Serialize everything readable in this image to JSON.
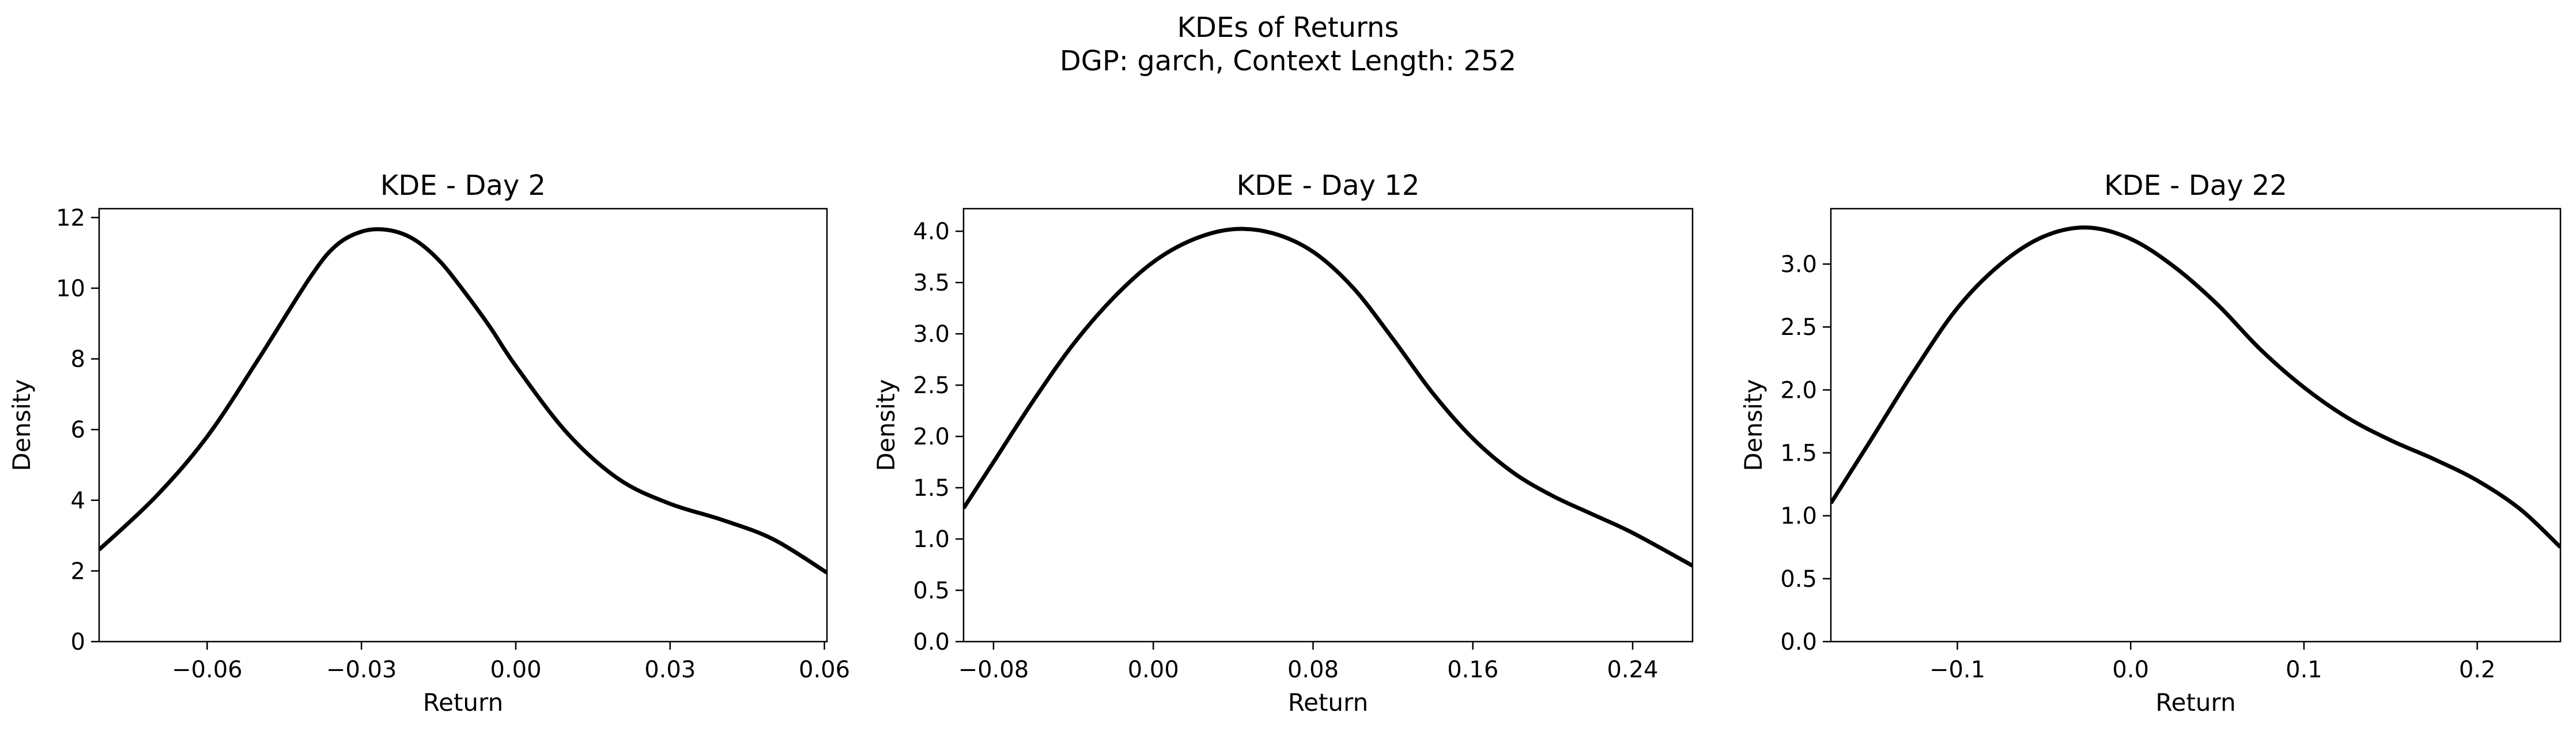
{
  "figure": {
    "suptitle_line1": "KDEs of Returns",
    "suptitle_line2": "DGP: garch, Context Length: 252"
  },
  "chart_data": [
    {
      "type": "line",
      "title": "KDE - Day 2",
      "xlabel": "Return",
      "ylabel": "Density",
      "xlim": [
        -0.081,
        0.0605
      ],
      "ylim": [
        0,
        12.25
      ],
      "xticks": [
        -0.06,
        -0.03,
        0.0,
        0.03,
        0.06
      ],
      "xtick_labels": [
        "−0.06",
        "−0.03",
        "0.00",
        "0.03",
        "0.06"
      ],
      "yticks": [
        0,
        2,
        4,
        6,
        8,
        10,
        12
      ],
      "ytick_labels": [
        "0",
        "2",
        "4",
        "6",
        "8",
        "10",
        "12"
      ],
      "line_color": "#000000",
      "grid": false,
      "series": [
        {
          "x": [
            -0.081,
            -0.07,
            -0.06,
            -0.05,
            -0.04,
            -0.035,
            -0.03,
            -0.025,
            -0.02,
            -0.015,
            -0.01,
            -0.005,
            0.0,
            0.01,
            0.02,
            0.03,
            0.04,
            0.05,
            0.0605
          ],
          "y": [
            2.6,
            4.1,
            5.8,
            8.0,
            10.3,
            11.2,
            11.6,
            11.65,
            11.4,
            10.8,
            9.9,
            8.9,
            7.8,
            5.9,
            4.6,
            3.9,
            3.45,
            2.9,
            1.95
          ]
        }
      ]
    },
    {
      "type": "line",
      "title": "KDE - Day 12",
      "xlabel": "Return",
      "ylabel": "Density",
      "xlim": [
        -0.095,
        0.27
      ],
      "ylim": [
        0,
        4.22
      ],
      "xticks": [
        -0.08,
        0.0,
        0.08,
        0.16,
        0.24
      ],
      "xtick_labels": [
        "−0.08",
        "0.00",
        "0.08",
        "0.16",
        "0.24"
      ],
      "yticks": [
        0.0,
        0.5,
        1.0,
        1.5,
        2.0,
        2.5,
        3.0,
        3.5,
        4.0
      ],
      "ytick_labels": [
        "0.0",
        "0.5",
        "1.0",
        "1.5",
        "2.0",
        "2.5",
        "3.0",
        "3.5",
        "4.0"
      ],
      "line_color": "#000000",
      "grid": false,
      "series": [
        {
          "x": [
            -0.095,
            -0.08,
            -0.06,
            -0.04,
            -0.02,
            0.0,
            0.02,
            0.04,
            0.06,
            0.08,
            0.1,
            0.12,
            0.14,
            0.16,
            0.18,
            0.2,
            0.22,
            0.24,
            0.27
          ],
          "y": [
            1.3,
            1.75,
            2.35,
            2.9,
            3.35,
            3.7,
            3.92,
            4.02,
            3.98,
            3.8,
            3.45,
            2.95,
            2.42,
            1.98,
            1.65,
            1.42,
            1.24,
            1.06,
            0.74
          ]
        }
      ]
    },
    {
      "type": "line",
      "title": "KDE - Day 22",
      "xlabel": "Return",
      "ylabel": "Density",
      "xlim": [
        -0.173,
        0.248
      ],
      "ylim": [
        0,
        3.44
      ],
      "xticks": [
        -0.1,
        0.0,
        0.1,
        0.2
      ],
      "xtick_labels": [
        "−0.1",
        "0.0",
        "0.1",
        "0.2"
      ],
      "yticks": [
        0.0,
        0.5,
        1.0,
        1.5,
        2.0,
        2.5,
        3.0
      ],
      "ytick_labels": [
        "0.0",
        "0.5",
        "1.0",
        "1.5",
        "2.0",
        "2.5",
        "3.0"
      ],
      "line_color": "#000000",
      "grid": false,
      "series": [
        {
          "x": [
            -0.173,
            -0.15,
            -0.125,
            -0.1,
            -0.075,
            -0.05,
            -0.025,
            0.0,
            0.025,
            0.05,
            0.075,
            0.1,
            0.125,
            0.15,
            0.175,
            0.2,
            0.225,
            0.248
          ],
          "y": [
            1.1,
            1.6,
            2.15,
            2.65,
            3.0,
            3.22,
            3.29,
            3.2,
            2.98,
            2.68,
            2.32,
            2.02,
            1.78,
            1.6,
            1.45,
            1.28,
            1.05,
            0.75
          ]
        }
      ]
    }
  ]
}
